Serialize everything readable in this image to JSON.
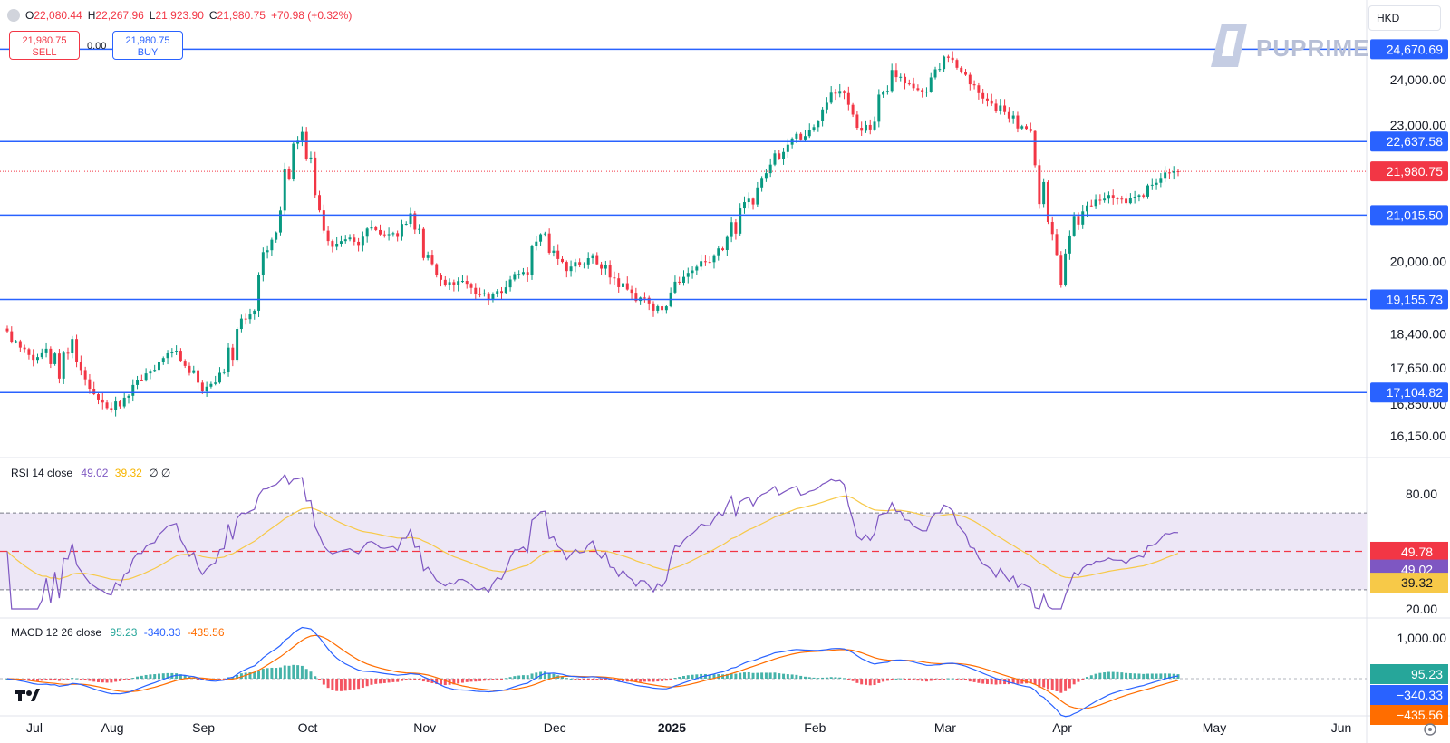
{
  "header": {
    "ohlc": {
      "o": "22,080.44",
      "h": "22,267.96",
      "l": "21,923.90",
      "c": "21,980.75",
      "change": "+70.98 (+0.32%)"
    },
    "sell": {
      "price": "21,980.75",
      "label": "SELL"
    },
    "spread": "0.00",
    "buy": {
      "price": "21,980.75",
      "label": "BUY"
    },
    "currency": "HKD",
    "brand": "PUPRIME"
  },
  "price_axis": {
    "ticks": [
      "24,000.00",
      "23,000.00",
      "20,000.00",
      "18,400.00",
      "17,650.00",
      "16,850.00",
      "16,150.00"
    ],
    "tick_values": [
      24000,
      23000,
      20000,
      18400,
      17650,
      16850,
      16150
    ],
    "current": {
      "label": "21,980.75",
      "value": 21980.75
    },
    "levels": [
      {
        "label": "24,670.69",
        "value": 24670.69
      },
      {
        "label": "22,637.58",
        "value": 22637.58
      },
      {
        "label": "21,015.50",
        "value": 21015.5
      },
      {
        "label": "19,155.73",
        "value": 19155.73
      },
      {
        "label": "17,104.82",
        "value": 17104.82
      }
    ]
  },
  "time_axis": [
    "Jul",
    "Aug",
    "Sep",
    "Oct",
    "Nov",
    "Dec",
    "2025",
    "Feb",
    "Mar",
    "Apr",
    "May",
    "Jun"
  ],
  "rsi": {
    "legend": {
      "name": "RSI 14 close",
      "rsi": "49.02",
      "ma": "39.32",
      "extra": "∅ ∅"
    },
    "ticks": [
      "80.00",
      "20.00"
    ],
    "middle_label": "49.78",
    "value_label": "49.02",
    "ma_label": "39.32",
    "colors": {
      "line": "#7e57c2",
      "ma": "#f7c948",
      "band": "#ede7f6"
    }
  },
  "macd": {
    "legend": {
      "name": "MACD 12 26 close",
      "hist": "95.23",
      "macd": "-340.33",
      "signal": "-435.56"
    },
    "ticks": [
      "1,000.00"
    ],
    "hist_label": "95.23",
    "macd_label": "−340.33",
    "signal_label": "−435.56",
    "colors": {
      "macd": "#2962ff",
      "signal": "#ff6d00",
      "up": "#26a69a",
      "down": "#f23645"
    }
  },
  "chart_data": {
    "type": "candlestick",
    "colors": {
      "up": "#089981",
      "down": "#f23645",
      "level_line": "#2962ff"
    },
    "anchors": [
      [
        "Jul",
        18450
      ],
      [
        "Jul",
        18150
      ],
      [
        "Jul",
        17850
      ],
      [
        "Jul",
        18050
      ],
      [
        "Jul",
        17600
      ],
      [
        "Jul",
        18200
      ],
      [
        "Aug",
        17400
      ],
      [
        "Aug",
        17000
      ],
      [
        "Aug",
        16700
      ],
      [
        "Aug",
        17050
      ],
      [
        "Aug",
        17300
      ],
      [
        "Aug",
        17600
      ],
      [
        "Aug",
        17850
      ],
      [
        "Sep",
        17950
      ],
      [
        "Sep",
        17650
      ],
      [
        "Sep",
        17200
      ],
      [
        "Sep",
        17300
      ],
      [
        "Sep",
        17900
      ],
      [
        "Sep",
        18600
      ],
      [
        "Sep",
        19300
      ],
      [
        "Sep",
        20300
      ],
      [
        "Oct",
        21400
      ],
      [
        "Oct",
        22600
      ],
      [
        "Oct",
        23000
      ],
      [
        "Oct",
        21000
      ],
      [
        "Oct",
        20400
      ],
      [
        "Oct",
        20500
      ],
      [
        "Oct",
        20400
      ],
      [
        "Oct",
        20700
      ],
      [
        "Oct",
        20500
      ],
      [
        "Nov",
        20600
      ],
      [
        "Nov",
        20900
      ],
      [
        "Nov",
        20300
      ],
      [
        "Nov",
        19700
      ],
      [
        "Nov",
        19500
      ],
      [
        "Nov",
        19600
      ],
      [
        "Nov",
        19300
      ],
      [
        "Nov",
        19250
      ],
      [
        "Nov",
        19400
      ],
      [
        "Nov",
        19700
      ],
      [
        "Dec",
        19900
      ],
      [
        "Dec",
        20700
      ],
      [
        "Dec",
        20100
      ],
      [
        "Dec",
        19850
      ],
      [
        "Dec",
        19950
      ],
      [
        "Dec",
        20050
      ],
      [
        "Dec",
        19800
      ],
      [
        "Dec",
        19500
      ],
      [
        "Dec",
        19300
      ],
      [
        "2025",
        19100
      ],
      [
        "2025",
        18900
      ],
      [
        "2025",
        19300
      ],
      [
        "2025",
        19700
      ],
      [
        "2025",
        19900
      ],
      [
        "2025",
        20100
      ],
      [
        "2025",
        20400
      ],
      [
        "2025",
        20800
      ],
      [
        "2025",
        21300
      ],
      [
        "2025",
        21800
      ],
      [
        "2025",
        22300
      ],
      [
        "Feb",
        22650
      ],
      [
        "Feb",
        22800
      ],
      [
        "Feb",
        23100
      ],
      [
        "Feb",
        23500
      ],
      [
        "Feb",
        23800
      ],
      [
        "Feb",
        23200
      ],
      [
        "Feb",
        22800
      ],
      [
        "Feb",
        23600
      ],
      [
        "Feb",
        24200
      ],
      [
        "Feb",
        24000
      ],
      [
        "Mar",
        23700
      ],
      [
        "Mar",
        23800
      ],
      [
        "Mar",
        24500
      ],
      [
        "Mar",
        24400
      ],
      [
        "Mar",
        24000
      ],
      [
        "Mar",
        23600
      ],
      [
        "Mar",
        23400
      ],
      [
        "Mar",
        23300
      ],
      [
        "Mar",
        23000
      ],
      [
        "Apr",
        22850
      ],
      [
        "Apr",
        20600
      ],
      [
        "Apr",
        19800
      ],
      [
        "Apr",
        20800
      ],
      [
        "Apr",
        21200
      ],
      [
        "Apr",
        21400
      ],
      [
        "Apr",
        21400
      ],
      [
        "Apr",
        21300
      ],
      [
        "Apr",
        21400
      ],
      [
        "Apr",
        21700
      ],
      [
        "Apr",
        22000
      ],
      [
        "Apr",
        21980.75
      ]
    ]
  }
}
